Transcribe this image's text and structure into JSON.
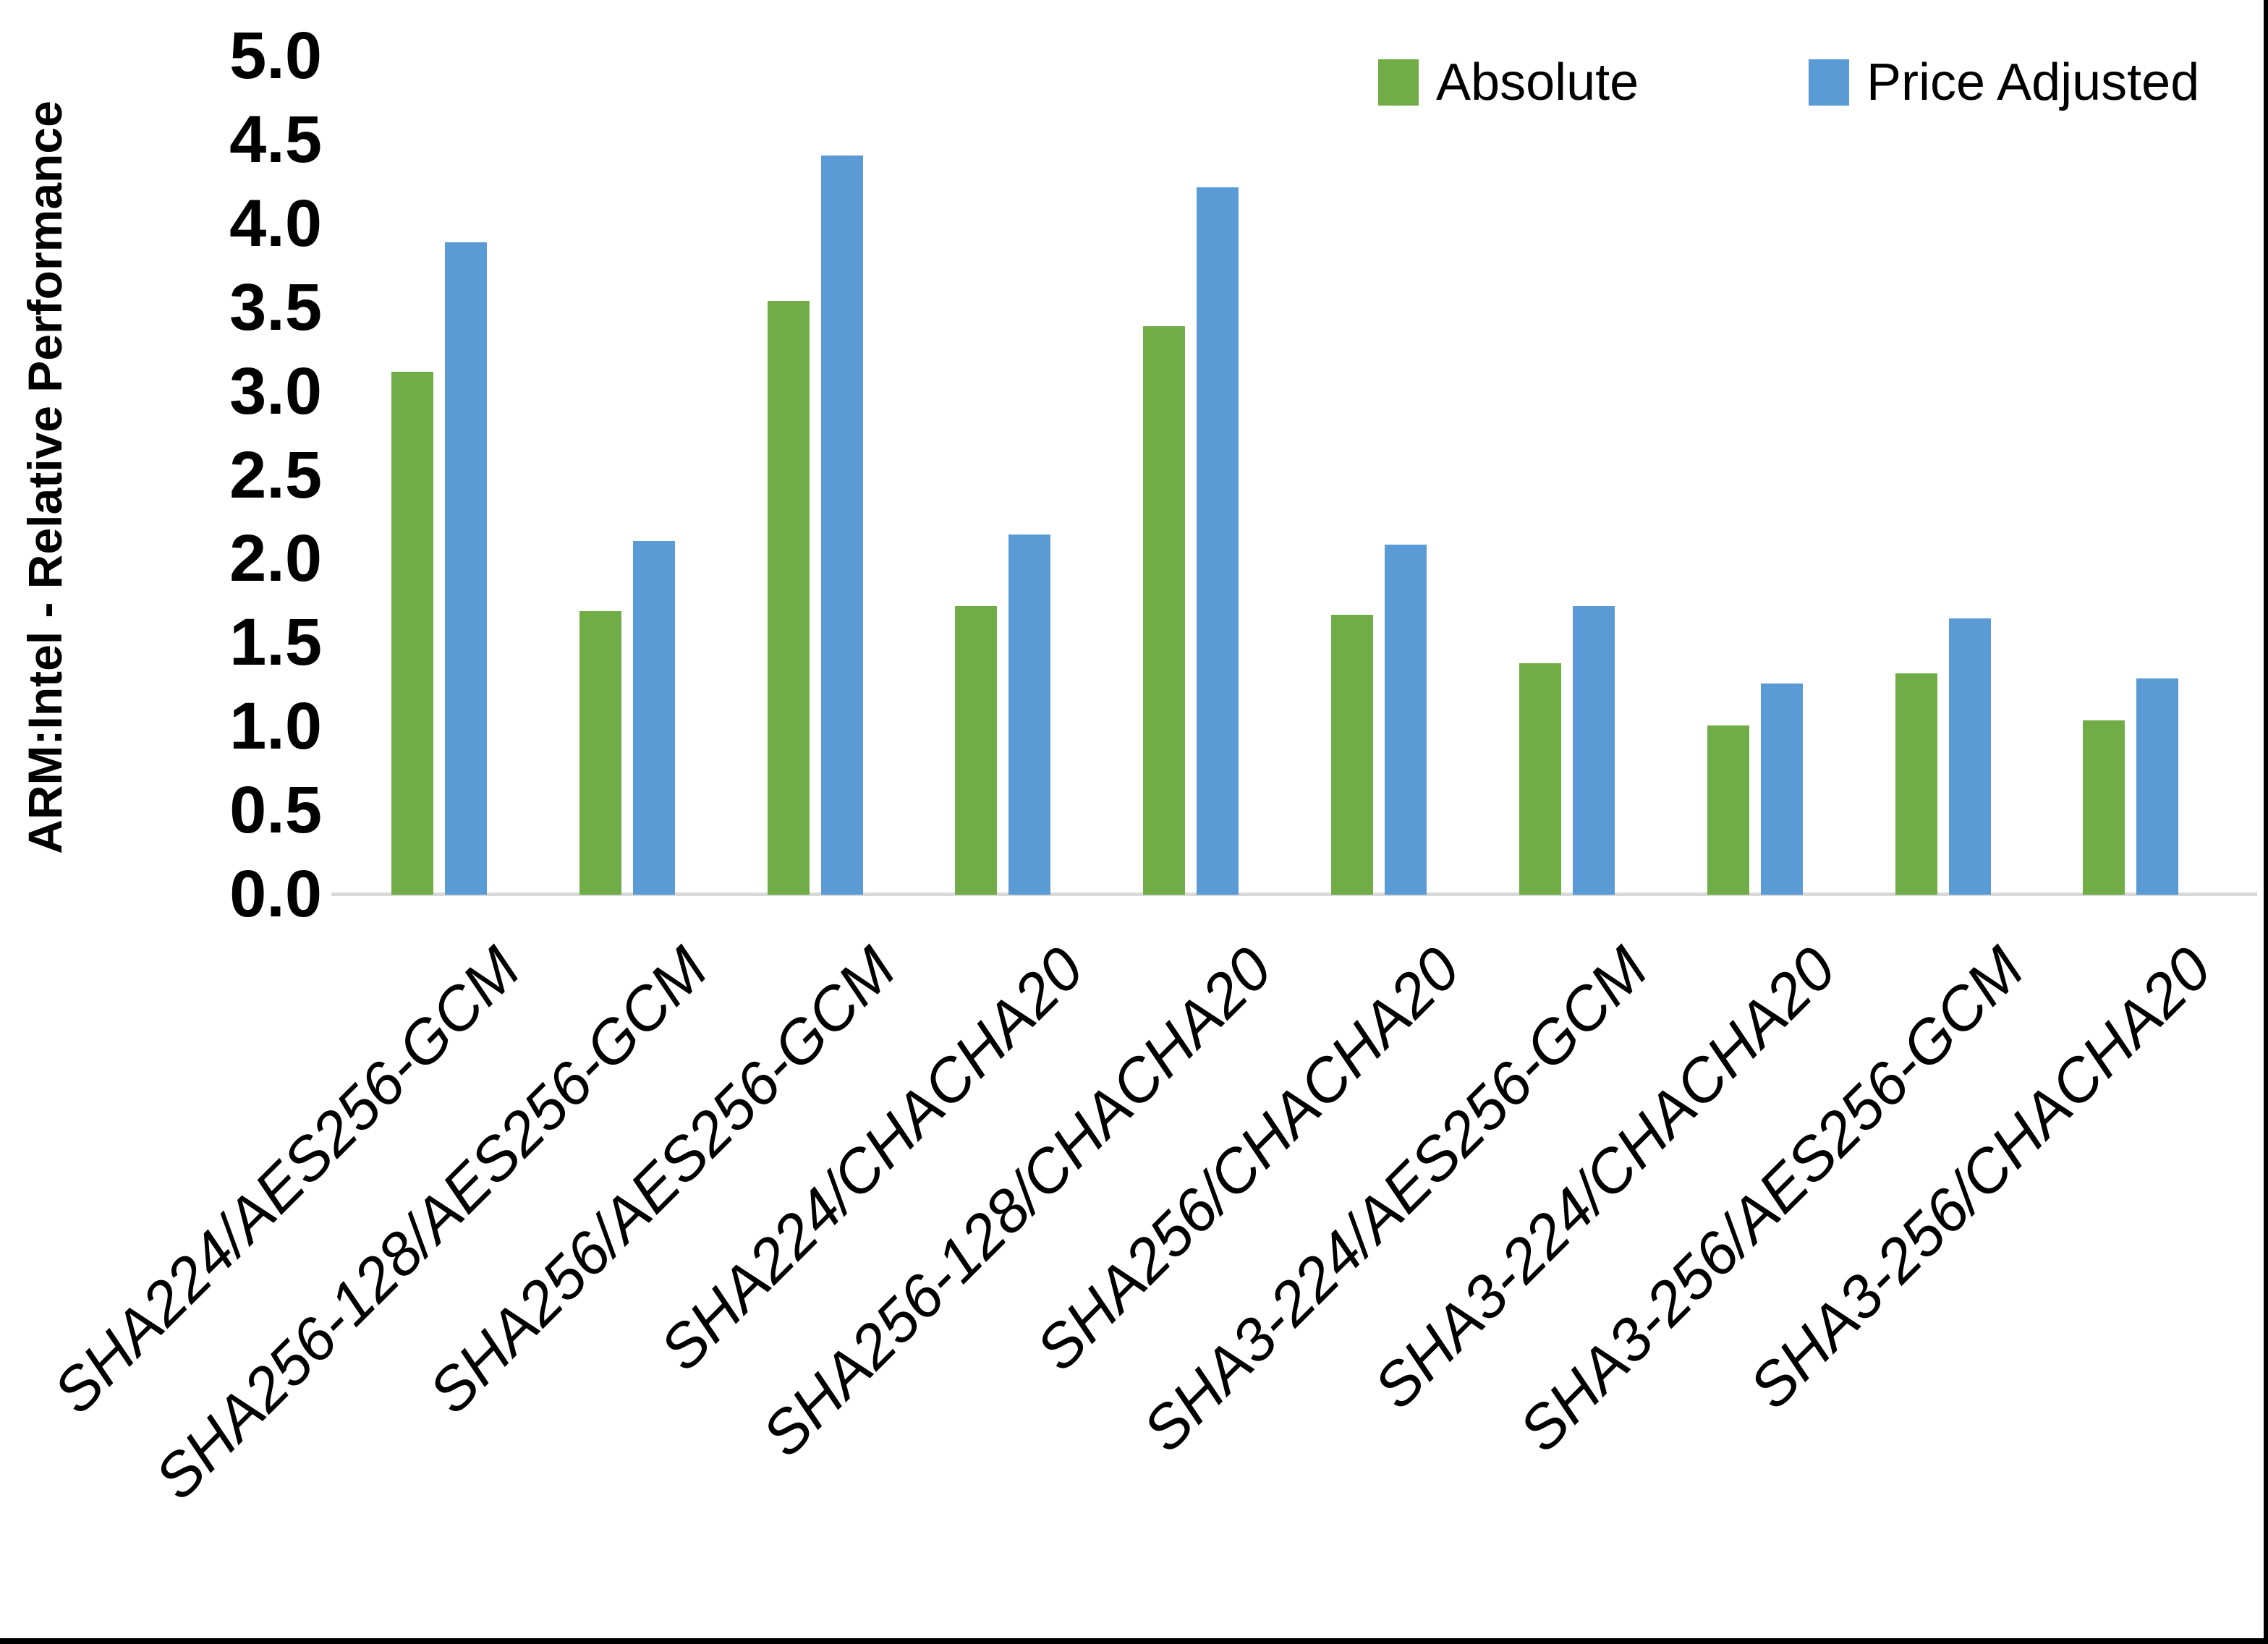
{
  "figure": {
    "y_axis_title": "ARM:Intel - Relative Performance"
  },
  "legend": {
    "items": [
      {
        "label": "Absolute",
        "color": "#70AD47"
      },
      {
        "label": "Price Adjusted",
        "color": "#5B9BD5"
      }
    ]
  },
  "chart_data": {
    "type": "bar",
    "title": "",
    "xlabel": "",
    "ylabel": "ARM:Intel - Relative Performance",
    "ylim": [
      0.0,
      5.0
    ],
    "ytick_step": 0.5,
    "y_tick_labels": [
      "0.0",
      "0.5",
      "1.0",
      "1.5",
      "2.0",
      "2.5",
      "3.0",
      "3.5",
      "4.0",
      "4.5",
      "5.0"
    ],
    "grid": false,
    "legend_position": "top-right",
    "background": "#FFFFFF",
    "axis_line_color": "#D9D9D9",
    "text_color": "#000000",
    "categories": [
      "SHA224/AES256-GCM",
      "SHA256-128/AES256-GCM",
      "SHA256/AES256-GCM",
      "SHA224/CHACHA20",
      "SHA256-128/CHACHA20",
      "SHA256/CHACHA20",
      "SHA3-224/AES256-GCM",
      "SHA3-224/CHACHA20",
      "SHA3-256/AES256-GCM",
      "SHA3-256/CHACHA20"
    ],
    "series": [
      {
        "name": "Absolute",
        "color": "#70AD47",
        "values": [
          3.12,
          1.69,
          3.54,
          1.72,
          3.39,
          1.67,
          1.38,
          1.01,
          1.32,
          1.04
        ]
      },
      {
        "name": "Price Adjusted",
        "color": "#5B9BD5",
        "values": [
          3.89,
          2.11,
          4.41,
          2.15,
          4.22,
          2.09,
          1.72,
          1.26,
          1.65,
          1.29
        ]
      }
    ]
  }
}
